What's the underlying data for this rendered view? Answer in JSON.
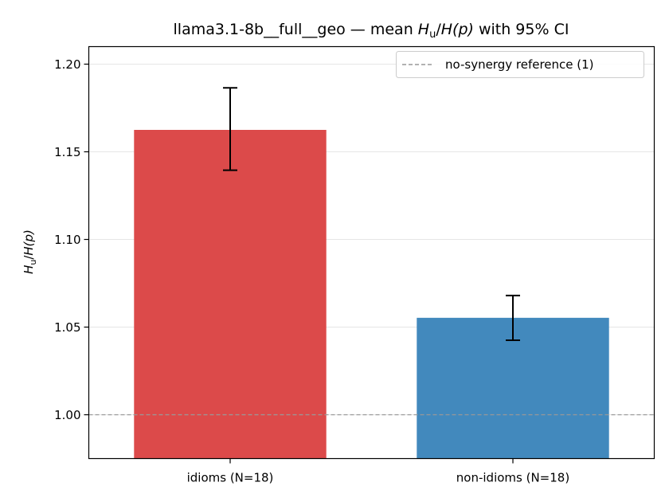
{
  "chart_data": {
    "type": "bar",
    "title": {
      "prefix": "llama3.1-8b__full__geo — mean ",
      "metric_sym": "H",
      "metric_sub": "u",
      "metric_mid": "/",
      "metric_den": "H",
      "metric_arg": "(p)",
      "suffix": " with 95% CI"
    },
    "ylabel": {
      "sym": "H",
      "sub": "u",
      "mid": "/",
      "den": "H",
      "arg": "(p)"
    },
    "categories": [
      "idioms (N=18)",
      "non-idioms (N=18)"
    ],
    "values": [
      1.1625,
      1.0553
    ],
    "ci_low": [
      1.1395,
      1.0425
    ],
    "ci_high": [
      1.1865,
      1.068
    ],
    "colors": [
      "#dc4a4a",
      "#4289bd"
    ],
    "ylim": [
      0.975,
      1.21
    ],
    "yticks": [
      "1.00",
      "1.05",
      "1.10",
      "1.15",
      "1.20"
    ],
    "ytick_values": [
      1.0,
      1.05,
      1.1,
      1.15,
      1.2
    ],
    "grid": "horizontal",
    "reference_line": {
      "value": 1.0,
      "label": "no-synergy reference (1)",
      "style": "dashed",
      "color": "#999999"
    },
    "legend_position": "top-right"
  }
}
